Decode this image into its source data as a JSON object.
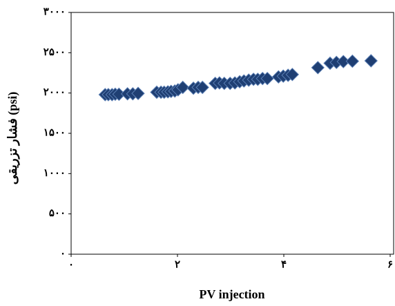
{
  "chart_data": {
    "type": "scatter",
    "x_label": "PV injection",
    "y_label": "فشار تزریقی (psi)",
    "color": "#1f3f73",
    "x": [
      0.64,
      0.7,
      0.77,
      0.83,
      0.9,
      1.06,
      1.16,
      1.26,
      1.61,
      1.69,
      1.75,
      1.82,
      1.88,
      1.95,
      2.01,
      2.1,
      2.3,
      2.39,
      2.47,
      2.71,
      2.79,
      2.88,
      2.99,
      3.08,
      3.17,
      3.25,
      3.34,
      3.43,
      3.51,
      3.6,
      3.69,
      3.9,
      3.99,
      4.08,
      4.16,
      4.64,
      4.87,
      4.99,
      5.12,
      5.29,
      5.64
    ],
    "values": [
      1980,
      1980,
      1980,
      1985,
      1985,
      1990,
      1990,
      1995,
      2010,
      2010,
      2010,
      2015,
      2020,
      2025,
      2040,
      2070,
      2060,
      2070,
      2070,
      2120,
      2125,
      2120,
      2120,
      2125,
      2140,
      2150,
      2160,
      2170,
      2170,
      2180,
      2180,
      2200,
      2210,
      2220,
      2230,
      2315,
      2370,
      2380,
      2390,
      2395,
      2400
    ],
    "xlim": [
      0,
      6
    ],
    "xticks": [
      {
        "value": 0,
        "label": "۰"
      },
      {
        "value": 2,
        "label": "۲"
      },
      {
        "value": 4,
        "label": "۴"
      },
      {
        "value": 6,
        "label": "۶"
      }
    ],
    "ylim": [
      0,
      3000
    ],
    "yticks": [
      {
        "value": 0,
        "label": "۰"
      },
      {
        "value": 500,
        "label": "۵۰۰"
      },
      {
        "value": 1000,
        "label": "۱۰۰۰"
      },
      {
        "value": 1500,
        "label": "۱۵۰۰"
      },
      {
        "value": 2000,
        "label": "۲۰۰۰"
      },
      {
        "value": 2500,
        "label": "۲۵۰۰"
      },
      {
        "value": 3000,
        "label": "۳۰۰۰"
      }
    ]
  }
}
